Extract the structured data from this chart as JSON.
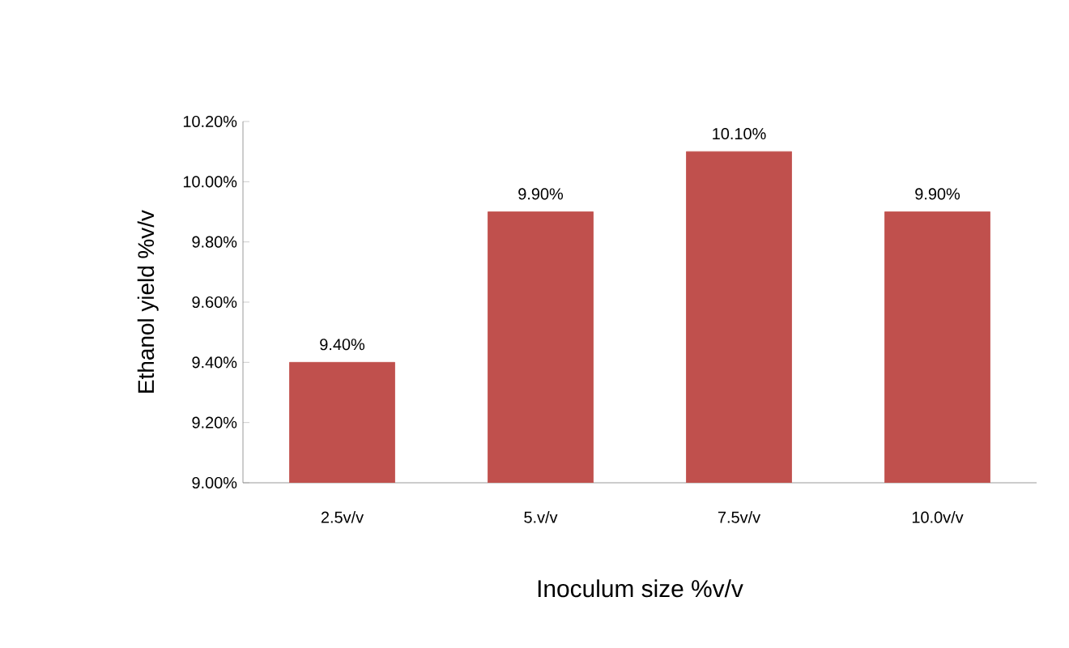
{
  "chart_data": {
    "type": "bar",
    "xlabel": "Inoculum  size %v/v",
    "ylabel": "Ethanol yield %v/v",
    "categories": [
      "2.5v/v",
      "5.v/v",
      "7.5v/v",
      "10.0v/v"
    ],
    "values": [
      9.4,
      9.9,
      10.1,
      9.9
    ],
    "value_labels": [
      "9.40%",
      "9.90%",
      "10.10%",
      "9.90%"
    ],
    "color": "#c0504d",
    "ylim": [
      9.0,
      10.2
    ],
    "yticks": [
      {
        "value": 9.0,
        "label": "9.00%"
      },
      {
        "value": 9.2,
        "label": "9.20%"
      },
      {
        "value": 9.4,
        "label": "9.40%"
      },
      {
        "value": 9.6,
        "label": "9.60%"
      },
      {
        "value": 9.8,
        "label": "9.80%"
      },
      {
        "value": 10.0,
        "label": "10.00%"
      },
      {
        "value": 10.2,
        "label": "10.20%"
      }
    ],
    "grid": false
  }
}
